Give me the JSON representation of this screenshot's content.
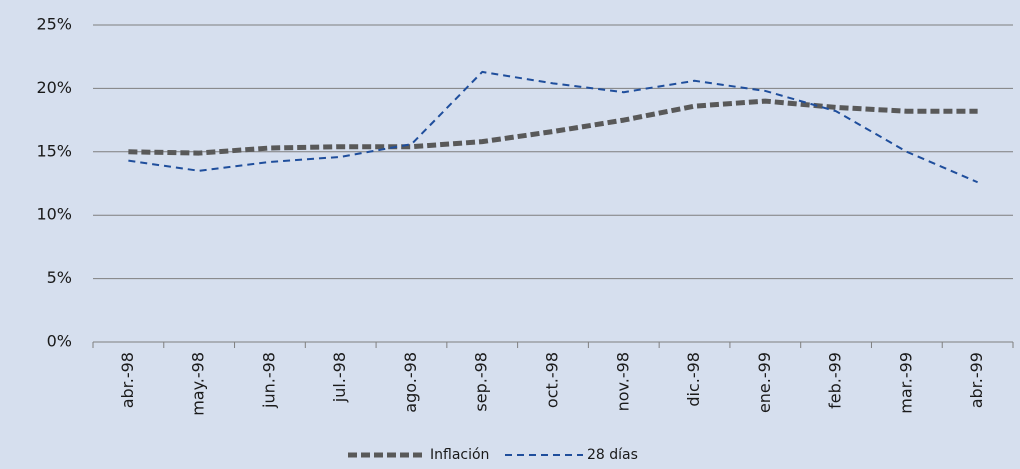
{
  "chart_data": {
    "type": "line",
    "categories": [
      "abr.-98",
      "may.-98",
      "jun.-98",
      "jul.-98",
      "ago.-98",
      "sep.-98",
      "oct.-98",
      "nov.-98",
      "dic.-98",
      "ene.-99",
      "feb.-99",
      "mar.-99",
      "abr.-99"
    ],
    "series": [
      {
        "name": "Inflación",
        "color": "#595959",
        "values": [
          15.0,
          14.9,
          15.3,
          15.4,
          15.4,
          15.8,
          16.6,
          17.5,
          18.6,
          19.0,
          18.5,
          18.2,
          18.2
        ]
      },
      {
        "name": "28 días",
        "color": "#1f4e9c",
        "values": [
          14.3,
          13.5,
          14.2,
          14.6,
          15.6,
          21.3,
          20.4,
          19.7,
          20.6,
          19.8,
          18.2,
          15.0,
          12.6
        ]
      }
    ],
    "ylim": [
      0,
      25
    ],
    "yticks": [
      {
        "value": 0,
        "label": "0%"
      },
      {
        "value": 5,
        "label": "5%"
      },
      {
        "value": 10,
        "label": "10%"
      },
      {
        "value": 15,
        "label": "15%"
      },
      {
        "value": 20,
        "label": "20%"
      },
      {
        "value": 25,
        "label": "25%"
      }
    ],
    "grid": true,
    "legend": "bottom"
  }
}
